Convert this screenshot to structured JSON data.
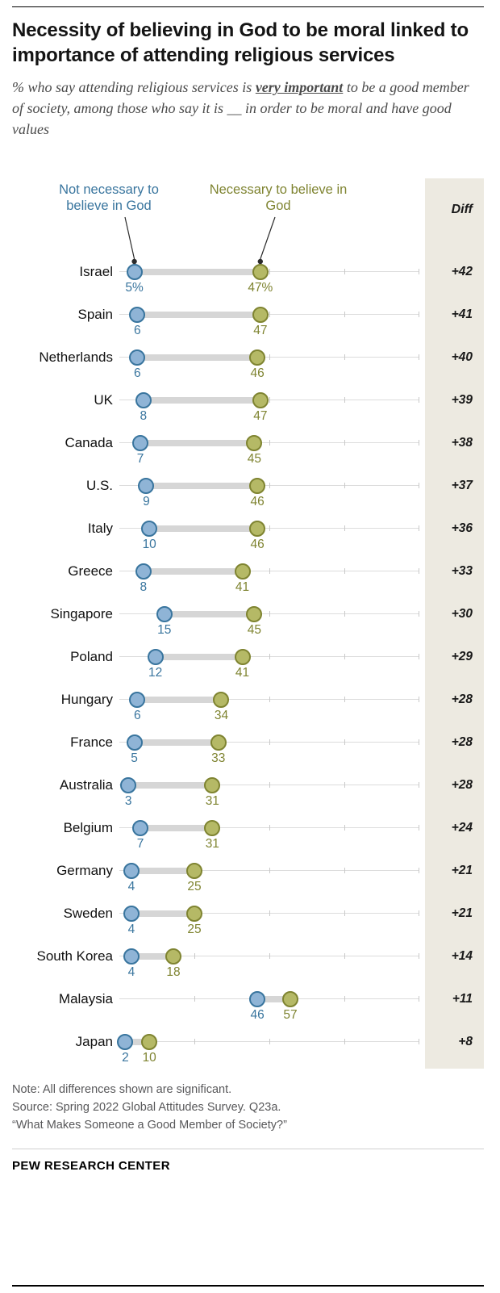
{
  "header": {
    "title": "Necessity of believing in God to be moral linked to importance of attending religious services",
    "subtitle_prefix": "% who say attending religious services is ",
    "subtitle_emph": "very important",
    "subtitle_suffix": " to be a good member of society, among those who say it is __ in order to be moral and have good values"
  },
  "chart_data": {
    "type": "dumbbell",
    "unit": "%",
    "xlim": [
      0,
      100
    ],
    "diff_label": "Diff",
    "series": [
      {
        "name": "Not necessary to believe in God",
        "color": "#39759e",
        "fill": "#8fb4d6"
      },
      {
        "name": "Necessary to believe in God",
        "color": "#7f8431",
        "fill": "#b5b966"
      }
    ],
    "rows": [
      {
        "country": "Israel",
        "not_necessary": 5,
        "necessary": 47,
        "not_label": "5%",
        "nec_label": "47%",
        "diff": "+42"
      },
      {
        "country": "Spain",
        "not_necessary": 6,
        "necessary": 47,
        "not_label": "6",
        "nec_label": "47",
        "diff": "+41"
      },
      {
        "country": "Netherlands",
        "not_necessary": 6,
        "necessary": 46,
        "not_label": "6",
        "nec_label": "46",
        "diff": "+40"
      },
      {
        "country": "UK",
        "not_necessary": 8,
        "necessary": 47,
        "not_label": "8",
        "nec_label": "47",
        "diff": "+39"
      },
      {
        "country": "Canada",
        "not_necessary": 7,
        "necessary": 45,
        "not_label": "7",
        "nec_label": "45",
        "diff": "+38"
      },
      {
        "country": "U.S.",
        "not_necessary": 9,
        "necessary": 46,
        "not_label": "9",
        "nec_label": "46",
        "diff": "+37"
      },
      {
        "country": "Italy",
        "not_necessary": 10,
        "necessary": 46,
        "not_label": "10",
        "nec_label": "46",
        "diff": "+36"
      },
      {
        "country": "Greece",
        "not_necessary": 8,
        "necessary": 41,
        "not_label": "8",
        "nec_label": "41",
        "diff": "+33"
      },
      {
        "country": "Singapore",
        "not_necessary": 15,
        "necessary": 45,
        "not_label": "15",
        "nec_label": "45",
        "diff": "+30"
      },
      {
        "country": "Poland",
        "not_necessary": 12,
        "necessary": 41,
        "not_label": "12",
        "nec_label": "41",
        "diff": "+29"
      },
      {
        "country": "Hungary",
        "not_necessary": 6,
        "necessary": 34,
        "not_label": "6",
        "nec_label": "34",
        "diff": "+28"
      },
      {
        "country": "France",
        "not_necessary": 5,
        "necessary": 33,
        "not_label": "5",
        "nec_label": "33",
        "diff": "+28"
      },
      {
        "country": "Australia",
        "not_necessary": 3,
        "necessary": 31,
        "not_label": "3",
        "nec_label": "31",
        "diff": "+28"
      },
      {
        "country": "Belgium",
        "not_necessary": 7,
        "necessary": 31,
        "not_label": "7",
        "nec_label": "31",
        "diff": "+24"
      },
      {
        "country": "Germany",
        "not_necessary": 4,
        "necessary": 25,
        "not_label": "4",
        "nec_label": "25",
        "diff": "+21"
      },
      {
        "country": "Sweden",
        "not_necessary": 4,
        "necessary": 25,
        "not_label": "4",
        "nec_label": "25",
        "diff": "+21"
      },
      {
        "country": "South Korea",
        "not_necessary": 4,
        "necessary": 18,
        "not_label": "4",
        "nec_label": "18",
        "diff": "+14"
      },
      {
        "country": "Malaysia",
        "not_necessary": 46,
        "necessary": 57,
        "not_label": "46",
        "nec_label": "57",
        "diff": "+11"
      },
      {
        "country": "Japan",
        "not_necessary": 2,
        "necessary": 10,
        "not_label": "2",
        "nec_label": "10",
        "diff": "+8"
      }
    ]
  },
  "colors": {
    "blue_stroke": "#39759e",
    "blue_fill": "#8fb4d6",
    "olive_stroke": "#7f8431",
    "olive_fill": "#b5b966",
    "connector": "#d6d6d6",
    "diff_column_bg": "#edeae1"
  },
  "notes": {
    "lines": [
      "Note: All differences shown are significant.",
      "Source: Spring 2022 Global Attitudes Survey. Q23a.",
      "“What Makes Someone a Good Member of Society?”"
    ]
  },
  "footer": {
    "brand": "PEW RESEARCH CENTER"
  }
}
